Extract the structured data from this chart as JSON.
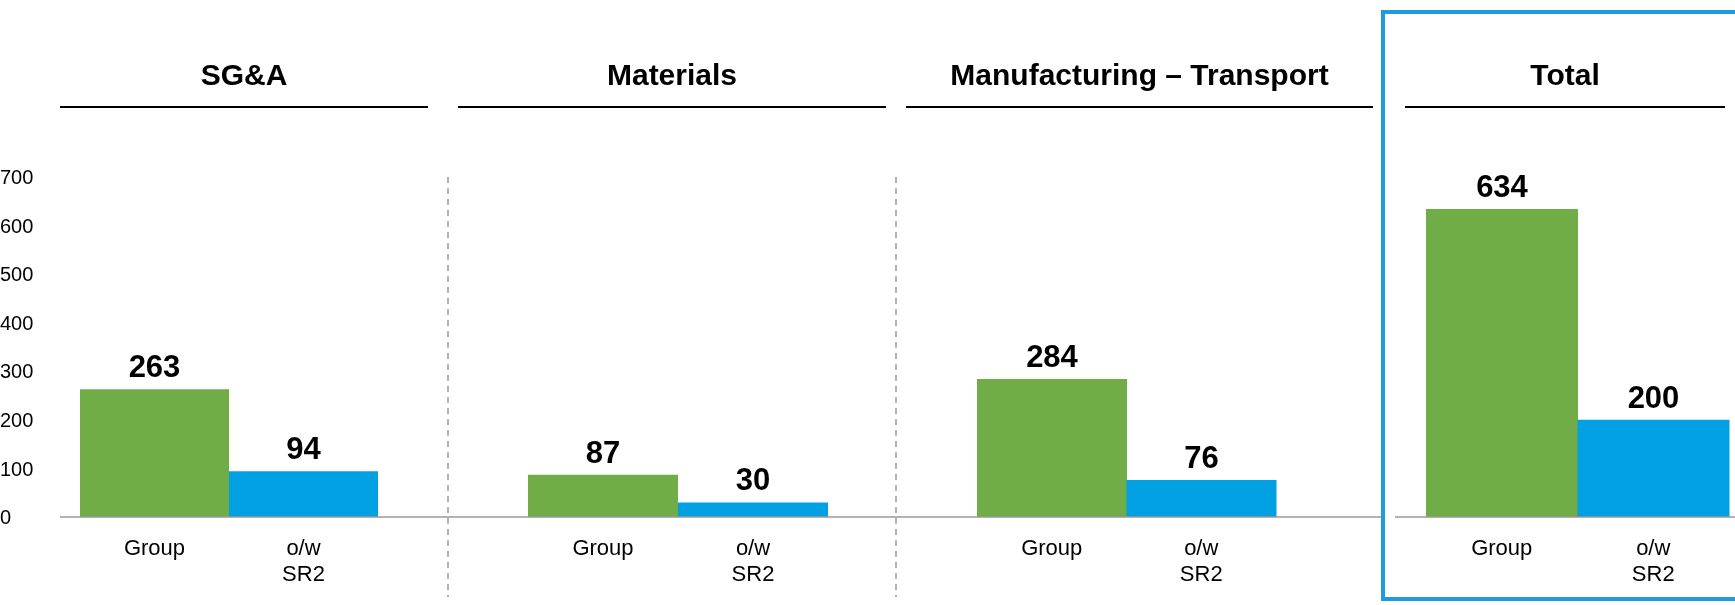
{
  "chart_data": [
    {
      "type": "bar",
      "title": "SG&A",
      "categories": [
        "Group",
        "o/w SR2"
      ],
      "values": [
        263,
        94
      ],
      "colors": [
        "#70ad47",
        "#00a0e2"
      ],
      "data_labels": true,
      "ylim": [
        0,
        700
      ],
      "yticks": [
        0,
        100,
        200,
        300,
        400,
        500,
        600,
        700
      ]
    },
    {
      "type": "bar",
      "title": "Materials",
      "categories": [
        "Group",
        "o/w SR2"
      ],
      "values": [
        87,
        30
      ],
      "colors": [
        "#70ad47",
        "#00a0e2"
      ],
      "data_labels": true,
      "ylim": [
        0,
        700
      ],
      "tick_labels": "x"
    },
    {
      "type": "bar",
      "title": "Manufacturing – Transport",
      "categories": [
        "Group",
        "o/w SR2"
      ],
      "values": [
        284,
        76
      ],
      "colors": [
        "#70ad47",
        "#00a0e2"
      ],
      "data_labels": true,
      "ylim": [
        0,
        700
      ],
      "tick_labels": "x"
    },
    {
      "type": "bar",
      "title": "Total",
      "categories": [
        "Group",
        "o/w SR2"
      ],
      "values": [
        634,
        200
      ],
      "colors": [
        "#70ad47",
        "#00a0e2"
      ],
      "data_labels": true,
      "ylim": [
        0,
        700
      ],
      "tick_labels": "x"
    }
  ]
}
